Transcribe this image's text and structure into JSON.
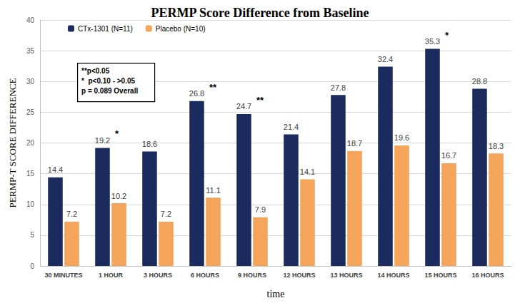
{
  "chart_data": {
    "type": "bar",
    "title": "PERMP Score Difference from Baseline",
    "x_label": "time",
    "y_label": "PERMP-T SCORE DIFFERENCE",
    "categories": [
      "30 MINUTES",
      "1 HOUR",
      "3 HOURS",
      "6 HOURS",
      "9 HOURS",
      "12 HOURS",
      "13 HOURS",
      "14 HOURS",
      "15 HOURS",
      "16 HOURS"
    ],
    "series": [
      {
        "name": "CTx-1301 (N=11)",
        "color": "#1c2b5e",
        "values": [
          14.4,
          19.2,
          18.6,
          26.8,
          24.7,
          21.4,
          27.8,
          32.4,
          35.3,
          28.8
        ]
      },
      {
        "name": "Placebo (N=10)",
        "color": "#f5a45c",
        "values": [
          7.2,
          10.2,
          7.2,
          11.1,
          7.9,
          14.1,
          18.7,
          19.6,
          16.7,
          18.3
        ]
      }
    ],
    "ylim": [
      0,
      40
    ],
    "yticks": [
      0,
      5,
      10,
      15,
      20,
      25,
      30,
      35,
      40
    ],
    "grid": true,
    "legend": "upper left",
    "data_labels": true,
    "annotations": [
      {
        "category": "1 HOUR",
        "text": "*"
      },
      {
        "category": "6 HOURS",
        "text": "**"
      },
      {
        "category": "9 HOURS",
        "text": "**"
      },
      {
        "category": "15 HOURS",
        "text": "*"
      }
    ],
    "note_lines": [
      "**p<0.05",
      "*  p<0.10 - >0.05",
      "p = 0.089 Overall"
    ]
  }
}
